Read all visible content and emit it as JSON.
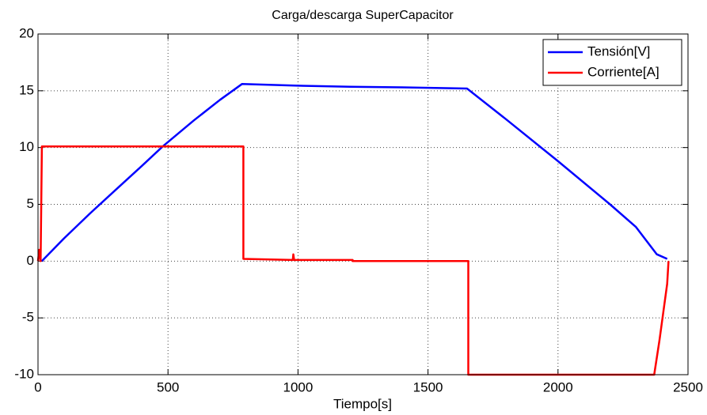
{
  "chart_data": {
    "type": "line",
    "title": "Carga/descarga SuperCapacitor",
    "x_label": "Tiempo[s]",
    "xlim": [
      0,
      2500
    ],
    "xticks": [
      0,
      500,
      1000,
      1500,
      2000,
      2500
    ],
    "ylim": [
      -10,
      20
    ],
    "yticks": [
      -10,
      -5,
      0,
      5,
      10,
      15,
      20
    ],
    "grid": true,
    "legend": "northeast",
    "series": [
      {
        "name": "Tensión[V]",
        "color": "#0000ff",
        "x": [
          15,
          100,
          200,
          300,
          400,
          480,
          600,
          700,
          785,
          1000,
          1200,
          1400,
          1650,
          1800,
          2000,
          2200,
          2300,
          2350,
          2380,
          2420
        ],
        "values": [
          0,
          2.0,
          4.2,
          6.3,
          8.4,
          10.1,
          12.4,
          14.2,
          15.6,
          15.45,
          15.35,
          15.3,
          15.2,
          12.5,
          8.8,
          5.0,
          3.0,
          1.5,
          0.6,
          0.2
        ]
      },
      {
        "name": "Corriente[A]",
        "color": "#ff0000",
        "x": [
          0,
          5,
          10,
          15,
          790,
          790,
          980,
          982,
          985,
          1210,
          1210,
          1655,
          1655,
          2370,
          2390,
          2405,
          2420,
          2425
        ],
        "values": [
          0,
          1,
          0,
          10.1,
          10.1,
          0.2,
          0.1,
          0.6,
          0.1,
          0.1,
          0,
          0,
          -10,
          -10,
          -7,
          -4.5,
          -2,
          0
        ]
      }
    ]
  }
}
